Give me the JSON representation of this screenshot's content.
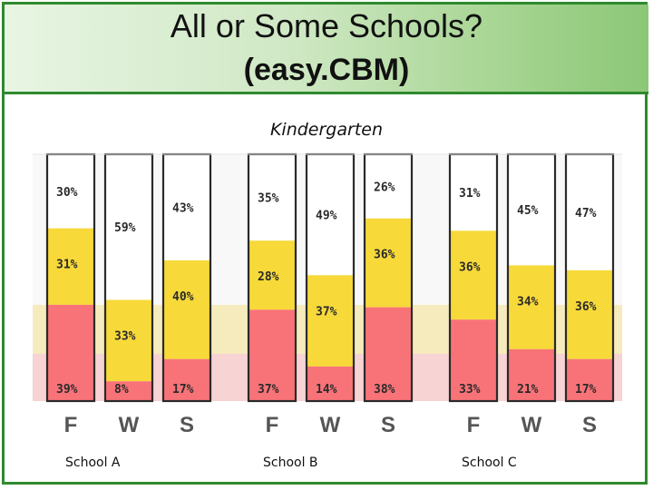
{
  "slide": {
    "title_line1": "All or Some Schools?",
    "title_line2": "(easy.CBM)",
    "subtitle": "Kindergarten"
  },
  "colors": {
    "white_band": "#ffffff",
    "yellow_band": "#f7d93a",
    "red_band": "#f87378",
    "bg_yellow_zone": "#f6ebbd",
    "bg_red_zone": "#f7d3d3",
    "accent_green": "#2f8a2f"
  },
  "chart_data": {
    "type": "bar",
    "stacked": true,
    "percent_stacked": true,
    "ylim": [
      0,
      100
    ],
    "groups": [
      {
        "name": "School A",
        "categories": [
          "F",
          "W",
          "S"
        ]
      },
      {
        "name": "School B",
        "categories": [
          "F",
          "W",
          "S"
        ]
      },
      {
        "name": "School C",
        "categories": [
          "F",
          "W",
          "S"
        ]
      }
    ],
    "bars": [
      {
        "group": "School A",
        "category": "F",
        "red": 39,
        "yellow": 31,
        "white": 30
      },
      {
        "group": "School A",
        "category": "W",
        "red": 8,
        "yellow": 33,
        "white": 59
      },
      {
        "group": "School A",
        "category": "S",
        "red": 17,
        "yellow": 40,
        "white": 43
      },
      {
        "group": "School B",
        "category": "F",
        "red": 37,
        "yellow": 28,
        "white": 35
      },
      {
        "group": "School B",
        "category": "W",
        "red": 14,
        "yellow": 37,
        "white": 49
      },
      {
        "group": "School B",
        "category": "S",
        "red": 38,
        "yellow": 36,
        "white": 26
      },
      {
        "group": "School C",
        "category": "F",
        "red": 33,
        "yellow": 36,
        "white": 31
      },
      {
        "group": "School C",
        "category": "W",
        "red": 21,
        "yellow": 34,
        "white": 45
      },
      {
        "group": "School C",
        "category": "S",
        "red": 17,
        "yellow": 36,
        "white": 47
      }
    ],
    "value_labels": [
      "39%",
      "31%",
      "30%",
      "8%",
      "33%",
      "59%",
      "17%",
      "40%",
      "43%",
      "37%",
      "28%",
      "35%",
      "14%",
      "37%",
      "49%",
      "38%",
      "36%",
      "26%",
      "33%",
      "36%",
      "31%",
      "21%",
      "34%",
      "45%",
      "17%",
      "36%",
      "47%"
    ]
  }
}
